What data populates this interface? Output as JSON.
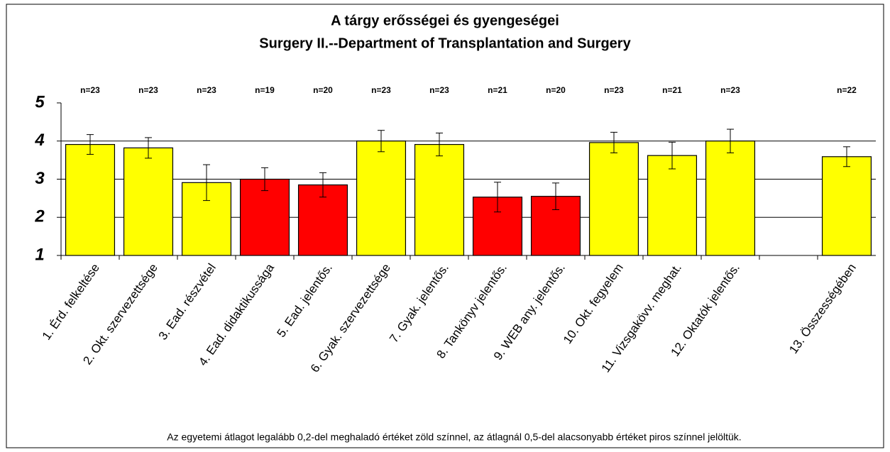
{
  "chart_data": {
    "type": "bar",
    "title": "A tárgy erősségei és gyengeségei",
    "subtitle": "Surgery II.--Department of Transplantation and Surgery",
    "categories": [
      "1. Érd. felkeltése",
      "2. Okt. szervezettsége",
      "3. Ead. részvétel",
      "4. Ead. didaktikussága",
      "5. Ead. jelentős.",
      "6. Gyak. szervezettsége",
      "7. Gyak. jelentős.",
      "8. Tankönyv jelentős.",
      "9. WEB any. jelentős.",
      "10. Okt. fegyelem",
      "11. Vizsgakövv. meghat.",
      "12. Oktatók jelentős.",
      null,
      "13. Összességében"
    ],
    "values": [
      3.91,
      3.82,
      2.91,
      3.0,
      2.85,
      4.0,
      3.91,
      2.53,
      2.55,
      3.96,
      3.62,
      4.0,
      null,
      3.59
    ],
    "errors": [
      0.26,
      0.27,
      0.47,
      0.3,
      0.32,
      0.28,
      0.3,
      0.39,
      0.35,
      0.27,
      0.35,
      0.31,
      null,
      0.26
    ],
    "colors": [
      "#ffff00",
      "#ffff00",
      "#ffff00",
      "#ff0000",
      "#ff0000",
      "#ffff00",
      "#ffff00",
      "#ff0000",
      "#ff0000",
      "#ffff00",
      "#ffff00",
      "#ffff00",
      null,
      "#ffff00"
    ],
    "n_labels": [
      "n=23",
      "n=23",
      "n=23",
      "n=19",
      "n=20",
      "n=23",
      "n=23",
      "n=21",
      "n=20",
      "n=23",
      "n=21",
      "n=23",
      null,
      "n=22"
    ],
    "ylim": [
      1,
      5
    ],
    "yticks": [
      1,
      2,
      3,
      4,
      5
    ],
    "grid": true,
    "footnote": "Az egyetemi átlagot legalább 0,2-del meghaladó értéket zöld színnel, az átlagnál 0,5-del alacsonyabb értéket piros színnel jelöltük."
  }
}
